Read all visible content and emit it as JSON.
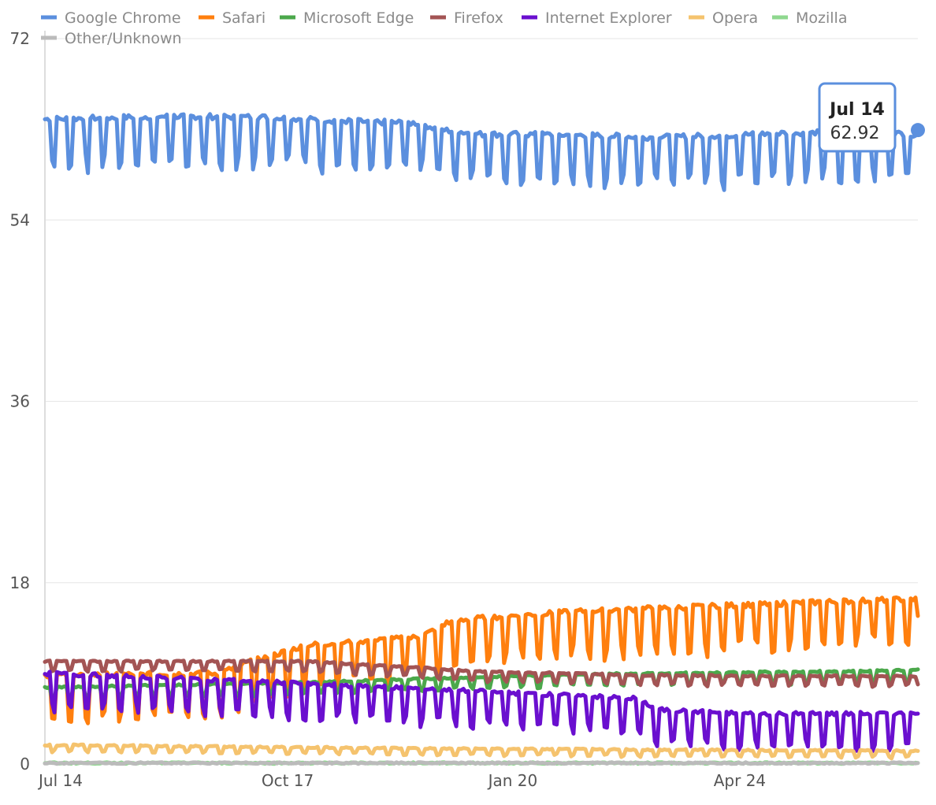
{
  "chart_data": {
    "type": "line",
    "title": "",
    "xlabel": "",
    "ylabel": "",
    "ylim": [
      0,
      72
    ],
    "y_ticks": [
      "0",
      "18",
      "36",
      "54",
      "72"
    ],
    "x_ticks": [
      "Jul 14",
      "Oct 17",
      "Jan 20",
      "Apr 24"
    ],
    "x_range": [
      "Jul 14",
      "Jul 14"
    ],
    "grid": "horizontal",
    "legend_position": "top",
    "series": [
      {
        "name": "Google Chrome",
        "color": "#5b8fde",
        "trend": [
          [
            0,
            64.0
          ],
          [
            0.15,
            64.3
          ],
          [
            0.25,
            64.2
          ],
          [
            0.35,
            63.8
          ],
          [
            0.43,
            63.6
          ],
          [
            0.45,
            63.0
          ],
          [
            0.5,
            62.5
          ],
          [
            0.55,
            62.5
          ],
          [
            0.62,
            62.4
          ],
          [
            0.7,
            62.2
          ],
          [
            0.78,
            62.4
          ],
          [
            0.9,
            62.8
          ],
          [
            1.0,
            62.5
          ]
        ],
        "weekend_dip": 4.6,
        "end_value": 62.92
      },
      {
        "name": "Safari",
        "color": "#ff7f0e",
        "trend": [
          [
            0,
            8.8
          ],
          [
            0.2,
            9.0
          ],
          [
            0.23,
            10.0
          ],
          [
            0.3,
            11.8
          ],
          [
            0.43,
            12.6
          ],
          [
            0.46,
            14.0
          ],
          [
            0.5,
            14.5
          ],
          [
            0.62,
            15.2
          ],
          [
            0.8,
            15.8
          ],
          [
            1.0,
            16.4
          ]
        ],
        "weekend_dip": 4.2,
        "end_value": 14.7
      },
      {
        "name": "Microsoft Edge",
        "color": "#4ba84b",
        "trend": [
          [
            0,
            7.6
          ],
          [
            0.3,
            8.1
          ],
          [
            0.6,
            8.9
          ],
          [
            1.0,
            9.3
          ]
        ],
        "weekend_dip": 1.1,
        "end_value": 9.4
      },
      {
        "name": "Firefox",
        "color": "#a35454",
        "trend": [
          [
            0,
            10.2
          ],
          [
            0.3,
            10.2
          ],
          [
            0.5,
            9.2
          ],
          [
            0.7,
            8.8
          ],
          [
            1.0,
            8.7
          ]
        ],
        "weekend_dip": 0.9,
        "end_value": 7.9
      },
      {
        "name": "Internet Explorer",
        "color": "#6a0fcf",
        "trend": [
          [
            0,
            9.0
          ],
          [
            0.25,
            8.2
          ],
          [
            0.5,
            7.2
          ],
          [
            0.68,
            6.5
          ],
          [
            0.7,
            5.4
          ],
          [
            0.8,
            5.0
          ],
          [
            1.0,
            5.0
          ]
        ],
        "weekend_dip": 3.2,
        "end_value": 5.0
      },
      {
        "name": "Opera",
        "color": "#f5c36e",
        "trend": [
          [
            0,
            1.9
          ],
          [
            0.5,
            1.5
          ],
          [
            1.0,
            1.3
          ]
        ],
        "weekend_dip": 0.6,
        "end_value": 1.3
      },
      {
        "name": "Mozilla",
        "color": "#8fd88f",
        "trend": [
          [
            0,
            0.1
          ],
          [
            1.0,
            0.1
          ]
        ],
        "weekend_dip": 0.0,
        "end_value": 0.1
      },
      {
        "name": "Other/Unknown",
        "color": "#bbbbbb",
        "trend": [
          [
            0,
            0.1
          ],
          [
            1.0,
            0.1
          ]
        ],
        "weekend_dip": 0.0,
        "end_value": 0.1
      }
    ],
    "tooltip": {
      "date": "Jul 14",
      "value": "62.92",
      "series": "Google Chrome"
    }
  }
}
